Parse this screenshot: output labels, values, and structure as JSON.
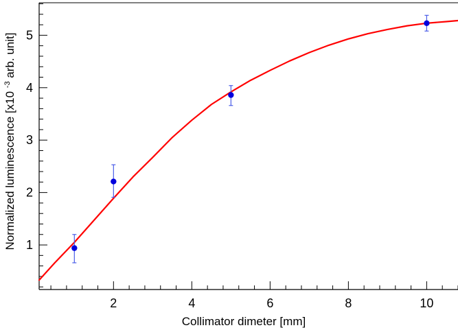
{
  "chart_data": {
    "type": "scatter",
    "title": "",
    "xlabel": "Collimator dimeter [mm]",
    "ylabel_main": "Normalized luminescence [x10",
    "ylabel_exponent": "-3",
    "ylabel_tail": " arb. unit]",
    "xlim": [
      0.1,
      10.8
    ],
    "ylim": [
      0.15,
      5.62
    ],
    "xticks": [
      {
        "value": 2,
        "label": "2"
      },
      {
        "value": 4,
        "label": "4"
      },
      {
        "value": 6,
        "label": "6"
      },
      {
        "value": 8,
        "label": "8"
      },
      {
        "value": 10,
        "label": "10"
      }
    ],
    "yticks": [
      {
        "value": 1,
        "label": "1"
      },
      {
        "value": 2,
        "label": "2"
      },
      {
        "value": 3,
        "label": "3"
      },
      {
        "value": 4,
        "label": "4"
      },
      {
        "value": 5,
        "label": "5"
      }
    ],
    "grid": false,
    "series": [
      {
        "type": "scatter",
        "color": "#0000dd",
        "points": [
          {
            "x": 1,
            "y": 0.94,
            "err_low": 0.28,
            "err_high": 0.26
          },
          {
            "x": 2,
            "y": 2.21,
            "err_low": 0.3,
            "err_high": 0.32
          },
          {
            "x": 5,
            "y": 3.86,
            "err_low": 0.2,
            "err_high": 0.18
          },
          {
            "x": 10,
            "y": 5.23,
            "err_low": 0.15,
            "err_high": 0.15
          }
        ]
      },
      {
        "type": "line",
        "color": "#ff0000",
        "x": [
          0.1,
          0.5,
          1,
          1.5,
          2,
          2.5,
          3,
          3.5,
          4,
          4.5,
          5,
          5.5,
          6,
          6.5,
          7,
          7.5,
          8,
          8.5,
          9,
          9.5,
          10,
          10.5,
          10.8
        ],
        "y": [
          0.33,
          0.66,
          1.05,
          1.47,
          1.89,
          2.3,
          2.67,
          3.05,
          3.38,
          3.68,
          3.92,
          4.14,
          4.33,
          4.51,
          4.67,
          4.81,
          4.93,
          5.03,
          5.11,
          5.18,
          5.23,
          5.26,
          5.28
        ]
      }
    ]
  }
}
